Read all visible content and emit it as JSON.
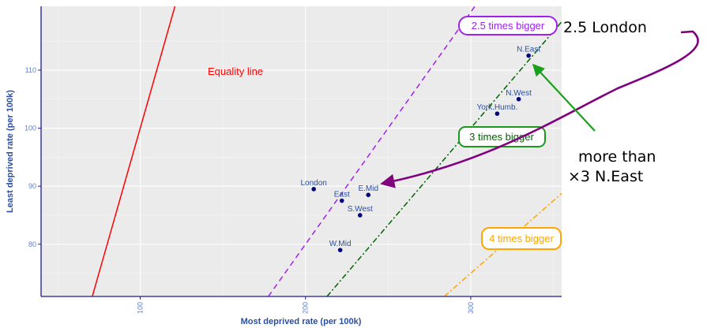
{
  "chart_data": {
    "type": "scatter",
    "xlabel": "Most deprived rate (per 100k)",
    "ylabel": "Least deprived rate (per 100k)",
    "xlim": [
      40,
      355
    ],
    "ylim": [
      71,
      121
    ],
    "x_ticks": [
      100,
      200,
      300
    ],
    "y_ticks": [
      80,
      90,
      100,
      110
    ],
    "grid": true,
    "points": [
      {
        "label": "N.East",
        "x": 335,
        "y": 112.5
      },
      {
        "label": "N.West",
        "x": 329,
        "y": 105
      },
      {
        "label": "York.Humb.",
        "x": 316,
        "y": 102.5
      },
      {
        "label": "London",
        "x": 205,
        "y": 89.5
      },
      {
        "label": "East",
        "x": 222,
        "y": 87.5
      },
      {
        "label": "E.Mid",
        "x": 238,
        "y": 88.5
      },
      {
        "label": "S.West",
        "x": 233,
        "y": 85
      },
      {
        "label": "W.Mid",
        "x": 221,
        "y": 79
      }
    ],
    "reference_lines": [
      {
        "name": "Equality line",
        "slope": 1,
        "color": "#ff0000",
        "style": "solid"
      },
      {
        "name": "2.5 times bigger",
        "slope": 2.5,
        "color": "#a020f0",
        "style": "dashed"
      },
      {
        "name": "3 times bigger",
        "slope": 3,
        "color": "#006400",
        "style": "dashdot"
      },
      {
        "name": "4 times bigger",
        "slope": 4,
        "color": "#ffa500",
        "style": "dashdot"
      }
    ],
    "annotations": [
      {
        "text": "2.5 London",
        "color": "#000000"
      },
      {
        "text": "more than",
        "color": "#000000"
      },
      {
        "text": "×3 N.East",
        "color": "#000000"
      }
    ]
  }
}
